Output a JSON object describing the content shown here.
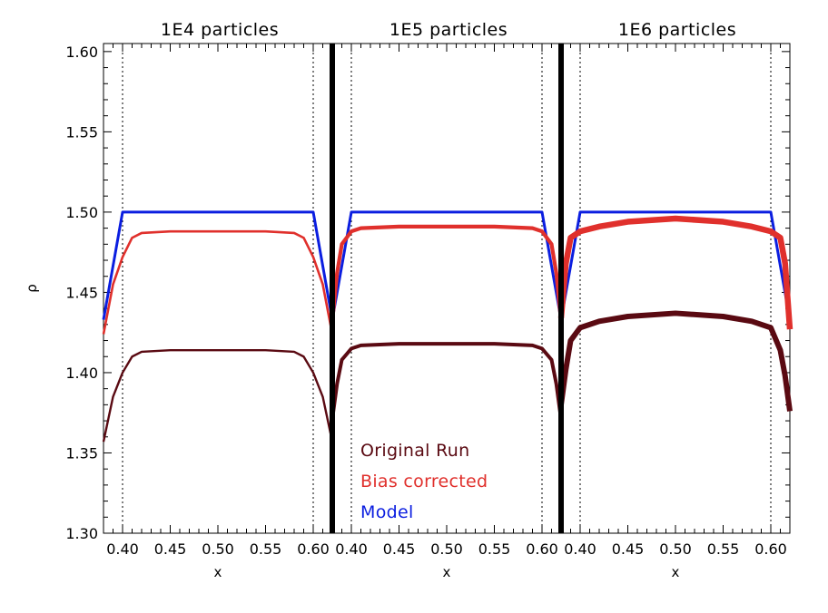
{
  "chart_data": {
    "type": "line",
    "ylabel": "ρ",
    "ylim": [
      1.3,
      1.605
    ],
    "yticks": [
      "1.30",
      "1.35",
      "1.40",
      "1.45",
      "1.50",
      "1.55",
      "1.60"
    ],
    "panels": [
      {
        "title": "1E4 particles",
        "xlabel": "x",
        "xlim": [
          0.38,
          0.62
        ],
        "xticks": [
          "0.40",
          "0.45",
          "0.50",
          "0.55",
          "0.60"
        ],
        "vlines": [
          0.4,
          0.6
        ],
        "series": [
          {
            "name": "Model",
            "x": [
              0.38,
              0.4,
              0.6,
              0.62
            ],
            "y": [
              1.433,
              1.5,
              1.5,
              1.433
            ]
          },
          {
            "name": "Bias corrected",
            "x": [
              0.38,
              0.39,
              0.4,
              0.41,
              0.42,
              0.45,
              0.5,
              0.55,
              0.58,
              0.59,
              0.6,
              0.61,
              0.62
            ],
            "y": [
              1.424,
              1.455,
              1.472,
              1.484,
              1.487,
              1.488,
              1.488,
              1.488,
              1.487,
              1.484,
              1.472,
              1.455,
              1.424
            ]
          },
          {
            "name": "Original Run",
            "x": [
              0.38,
              0.39,
              0.4,
              0.41,
              0.42,
              0.45,
              0.5,
              0.55,
              0.58,
              0.59,
              0.6,
              0.61,
              0.62
            ],
            "y": [
              1.357,
              1.385,
              1.4,
              1.41,
              1.413,
              1.414,
              1.414,
              1.414,
              1.413,
              1.41,
              1.4,
              1.385,
              1.357
            ]
          }
        ]
      },
      {
        "title": "1E5 particles",
        "xlabel": "x",
        "xlim": [
          0.38,
          0.62
        ],
        "xticks": [
          "0.40",
          "0.45",
          "0.50",
          "0.55",
          "0.60"
        ],
        "vlines": [
          0.4,
          0.6
        ],
        "series": [
          {
            "name": "Model",
            "x": [
              0.38,
              0.4,
              0.6,
              0.62
            ],
            "y": [
              1.433,
              1.5,
              1.5,
              1.433
            ]
          },
          {
            "name": "Bias corrected",
            "x": [
              0.38,
              0.385,
              0.39,
              0.4,
              0.41,
              0.45,
              0.5,
              0.55,
              0.59,
              0.6,
              0.61,
              0.615,
              0.62
            ],
            "y": [
              1.432,
              1.462,
              1.48,
              1.488,
              1.49,
              1.491,
              1.491,
              1.491,
              1.49,
              1.488,
              1.48,
              1.462,
              1.432
            ]
          },
          {
            "name": "Original Run",
            "x": [
              0.38,
              0.385,
              0.39,
              0.4,
              0.41,
              0.45,
              0.5,
              0.55,
              0.59,
              0.6,
              0.61,
              0.615,
              0.62
            ],
            "y": [
              1.371,
              1.393,
              1.408,
              1.415,
              1.417,
              1.418,
              1.418,
              1.418,
              1.417,
              1.415,
              1.408,
              1.393,
              1.371
            ]
          }
        ]
      },
      {
        "title": "1E6 particles",
        "xlabel": "x",
        "xlim": [
          0.38,
          0.62
        ],
        "xticks": [
          "0.40",
          "0.45",
          "0.50",
          "0.55",
          "0.60"
        ],
        "vlines": [
          0.4,
          0.6
        ],
        "series": [
          {
            "name": "Model",
            "x": [
              0.38,
              0.4,
              0.6,
              0.62
            ],
            "y": [
              1.433,
              1.5,
              1.5,
              1.433
            ]
          },
          {
            "name": "Bias corrected",
            "x": [
              0.38,
              0.385,
              0.39,
              0.4,
              0.42,
              0.45,
              0.5,
              0.55,
              0.58,
              0.6,
              0.61,
              0.615,
              0.62
            ],
            "y": [
              1.434,
              1.468,
              1.484,
              1.488,
              1.491,
              1.494,
              1.496,
              1.494,
              1.491,
              1.488,
              1.484,
              1.468,
              1.427
            ]
          },
          {
            "name": "Original Run",
            "x": [
              0.38,
              0.385,
              0.39,
              0.4,
              0.42,
              0.45,
              0.5,
              0.55,
              0.58,
              0.6,
              0.61,
              0.615,
              0.62
            ],
            "y": [
              1.38,
              1.402,
              1.42,
              1.428,
              1.432,
              1.435,
              1.437,
              1.435,
              1.432,
              1.428,
              1.414,
              1.398,
              1.376
            ]
          }
        ]
      }
    ],
    "legend": {
      "position": "bottom-center",
      "entries": [
        {
          "label": "Original Run",
          "color": "#5a0a12"
        },
        {
          "label": "Bias corrected",
          "color": "#e0302c"
        },
        {
          "label": "Model",
          "color": "#0b1ee0"
        }
      ]
    },
    "colors": {
      "Model": "#0b1ee0",
      "Bias corrected": "#e0302c",
      "Original Run": "#5a0a12",
      "divider": "#000000"
    }
  }
}
